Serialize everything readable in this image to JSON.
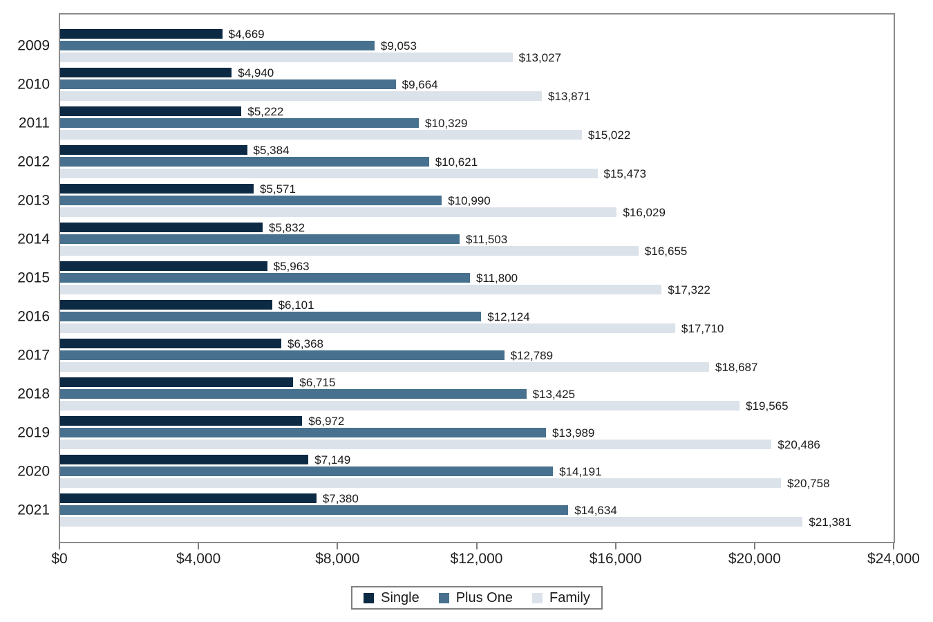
{
  "chart_data": {
    "type": "bar",
    "orientation": "horizontal",
    "title": "",
    "xlabel": "",
    "ylabel": "",
    "grid": false,
    "plot_background": "#ffffff",
    "frame_color": "#8b8b8b",
    "categories": [
      "2009",
      "2010",
      "2011",
      "2012",
      "2013",
      "2014",
      "2015",
      "2016",
      "2017",
      "2018",
      "2019",
      "2020",
      "2021"
    ],
    "series": [
      {
        "name": "Single",
        "color": "#0c2a44",
        "values": [
          4669,
          4940,
          5222,
          5384,
          5571,
          5832,
          5963,
          6101,
          6368,
          6715,
          6972,
          7149,
          7380
        ],
        "labels": [
          "$4,669",
          "$4,940",
          "$5,222",
          "$5,384",
          "$5,571",
          "$5,832",
          "$5,963",
          "$6,101",
          "$6,368",
          "$6,715",
          "$6,972",
          "$7,149",
          "$7,380"
        ]
      },
      {
        "name": "Plus One",
        "color": "#47718f",
        "values": [
          9053,
          9664,
          10329,
          10621,
          10990,
          11503,
          11800,
          12124,
          12789,
          13425,
          13989,
          14191,
          14634
        ],
        "labels": [
          "$9,053",
          "$9,664",
          "$10,329",
          "$10,621",
          "$10,990",
          "$11,503",
          "$11,800",
          "$12,124",
          "$12,789",
          "$13,425",
          "$13,989",
          "$14,191",
          "$14,634"
        ]
      },
      {
        "name": "Family",
        "color": "#dce2e9",
        "values": [
          13027,
          13871,
          15022,
          15473,
          16029,
          16655,
          17322,
          17710,
          18687,
          19565,
          20486,
          20758,
          21381
        ],
        "labels": [
          "$13,027",
          "$13,871",
          "$15,022",
          "$15,473",
          "$16,029",
          "$16,655",
          "$17,322",
          "$17,710",
          "$18,687",
          "$19,565",
          "$20,486",
          "$20,758",
          "$21,381"
        ]
      }
    ],
    "x_axis": {
      "min": 0,
      "max": 24000,
      "tick_values": [
        0,
        4000,
        8000,
        12000,
        16000,
        20000,
        24000
      ],
      "tick_labels": [
        "$0",
        "$4,000",
        "$8,000",
        "$12,000",
        "$16,000",
        "$20,000",
        "$24,000"
      ]
    },
    "legend": {
      "position": "bottom-center",
      "entries": [
        {
          "label": "Single",
          "color": "#0c2a44"
        },
        {
          "label": "Plus One",
          "color": "#47718f"
        },
        {
          "label": "Family",
          "color": "#dce2e9"
        }
      ]
    }
  }
}
